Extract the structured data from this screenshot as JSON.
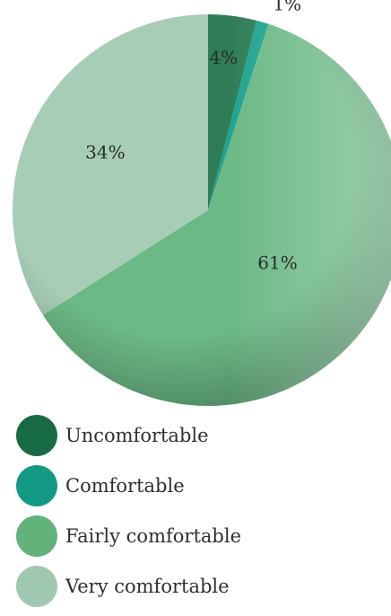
{
  "chart_data": {
    "type": "pie",
    "title": "",
    "slices": [
      {
        "name": "Uncomfortable",
        "value": 4,
        "label": "4%",
        "color": "#2e7d57"
      },
      {
        "name": "Comfortable",
        "value": 1,
        "label": "1%",
        "color": "#20a391"
      },
      {
        "name": "Fairly comfortable",
        "value": 61,
        "label": "61%",
        "color": "#6bb985"
      },
      {
        "name": "Very comfortable",
        "value": 34,
        "label": "34%",
        "color": "#a7cdb6"
      }
    ],
    "legend": {
      "placement": "bottom-left",
      "items": [
        {
          "label": "Uncomfortable",
          "color": "#176b45"
        },
        {
          "label": "Comfortable",
          "color": "#129a84"
        },
        {
          "label": "Fairly comfortable",
          "color": "#61b27b"
        },
        {
          "label": "Very comfortable",
          "color": "#9fc8b0"
        }
      ]
    }
  }
}
